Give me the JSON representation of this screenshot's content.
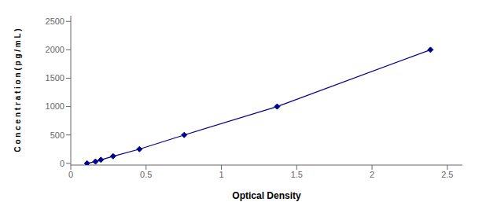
{
  "chart_data": {
    "type": "line",
    "xlabel": "Optical Density",
    "ylabel": "C o n c e n t r a t i o n ( p g / m L )",
    "x": [
      0.108,
      0.164,
      0.2,
      0.281,
      0.456,
      0.753,
      1.37,
      2.388
    ],
    "values": [
      0,
      31.25,
      62.5,
      125,
      250,
      500,
      1000,
      2000
    ],
    "color": "#00008B",
    "marker": "diamond",
    "xlim": [
      0.0,
      2.6
    ],
    "ylim": [
      -30,
      2600
    ],
    "xticks": [
      0,
      0.5,
      1,
      1.5,
      2,
      2.5
    ],
    "yticks": [
      0,
      500,
      1000,
      1500,
      2000,
      2500
    ],
    "grid": false
  }
}
